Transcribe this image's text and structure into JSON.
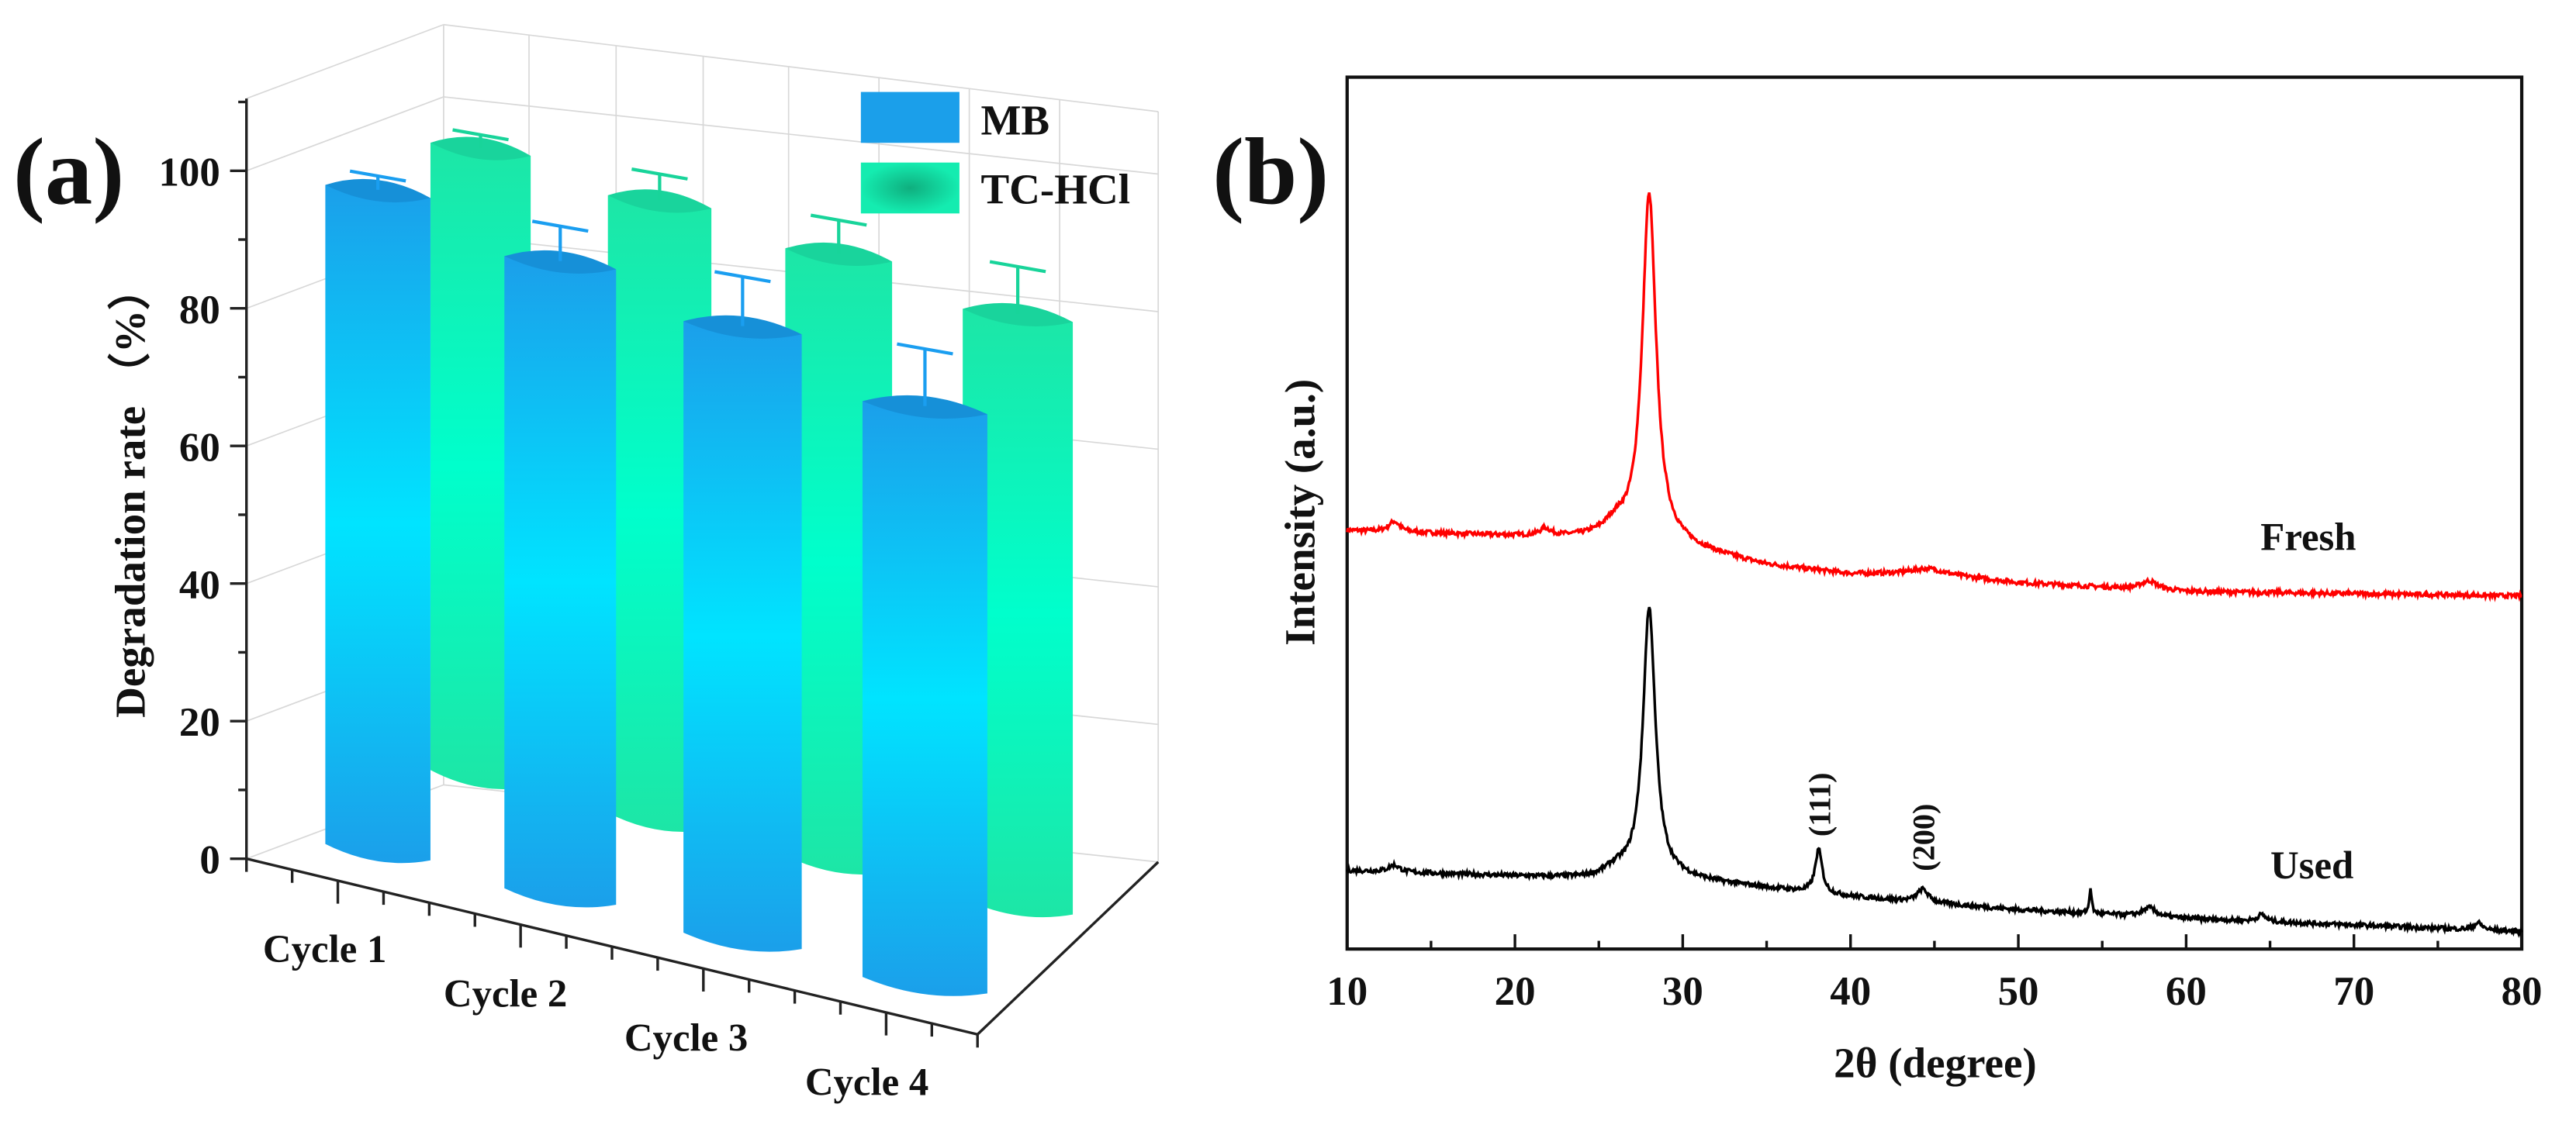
{
  "panels": {
    "a_label": "(a)",
    "b_label": "(b)"
  },
  "chart_data": [
    {
      "type": "bar",
      "panel": "(a)",
      "title": "",
      "xlabel": "",
      "ylabel": "Degradation rate （%）",
      "ylim": [
        0,
        110
      ],
      "yticks": [
        "0",
        "20",
        "40",
        "60",
        "80",
        "100"
      ],
      "categories": [
        "Cycle 1",
        "Cycle 2",
        "Cycle 3",
        "Cycle 4"
      ],
      "series": [
        {
          "name": "MB",
          "values": [
            97,
            92,
            88,
            82
          ],
          "errors": [
            2,
            5,
            7,
            8
          ],
          "color": "#1b9fea"
        },
        {
          "name": "TC-HCl",
          "values": [
            99,
            96,
            93,
            89
          ],
          "errors": [
            2,
            4,
            5,
            7
          ],
          "color": "#14ecb0"
        }
      ],
      "legend": "top-right",
      "grid": true
    },
    {
      "type": "line",
      "panel": "(b)",
      "title": "",
      "xlabel": "2θ (degree)",
      "ylabel": "Intensity (a.u.)",
      "xlim": [
        10,
        80
      ],
      "xticks": [
        "10",
        "20",
        "30",
        "40",
        "50",
        "60",
        "70",
        "80"
      ],
      "grid": false,
      "series": [
        {
          "name": "Fresh",
          "color": "#ff0000",
          "baseline": [
            [
              10,
              48
            ],
            [
              25,
              47
            ],
            [
              30,
              46
            ],
            [
              35,
              44
            ],
            [
              40,
              43
            ],
            [
              45,
              43
            ],
            [
              50,
              42
            ],
            [
              55,
              41.5
            ],
            [
              60,
              41
            ],
            [
              80,
              40.5
            ]
          ],
          "peaks": [
            [
              28,
              40,
              0.5
            ],
            [
              26,
              1.5,
              0.8
            ],
            [
              12.8,
              1.2,
              0.4
            ],
            [
              21.8,
              0.8,
              0.4
            ],
            [
              44.5,
              0.6,
              1.2
            ],
            [
              57.8,
              1,
              0.6
            ]
          ]
        },
        {
          "name": "Used",
          "color": "#000000",
          "baseline": [
            [
              10,
              9
            ],
            [
              25,
              8
            ],
            [
              30,
              8
            ],
            [
              35,
              7
            ],
            [
              40,
              6
            ],
            [
              50,
              4.5
            ],
            [
              60,
              3.5
            ],
            [
              80,
              2
            ]
          ],
          "peaks": [
            [
              28,
              31,
              0.45
            ],
            [
              26,
              1,
              0.8
            ],
            [
              12.8,
              0.8,
              0.4
            ],
            [
              38.1,
              5,
              0.25
            ],
            [
              44.3,
              1.5,
              0.4
            ],
            [
              54.3,
              3,
              0.08
            ],
            [
              57.8,
              1,
              0.5
            ],
            [
              64.5,
              0.8,
              0.3
            ],
            [
              77.4,
              0.8,
              0.3
            ]
          ]
        }
      ],
      "annotations": [
        {
          "text": "(111)",
          "x": 38.1
        },
        {
          "text": "(200)",
          "x": 44.3
        }
      ]
    }
  ]
}
